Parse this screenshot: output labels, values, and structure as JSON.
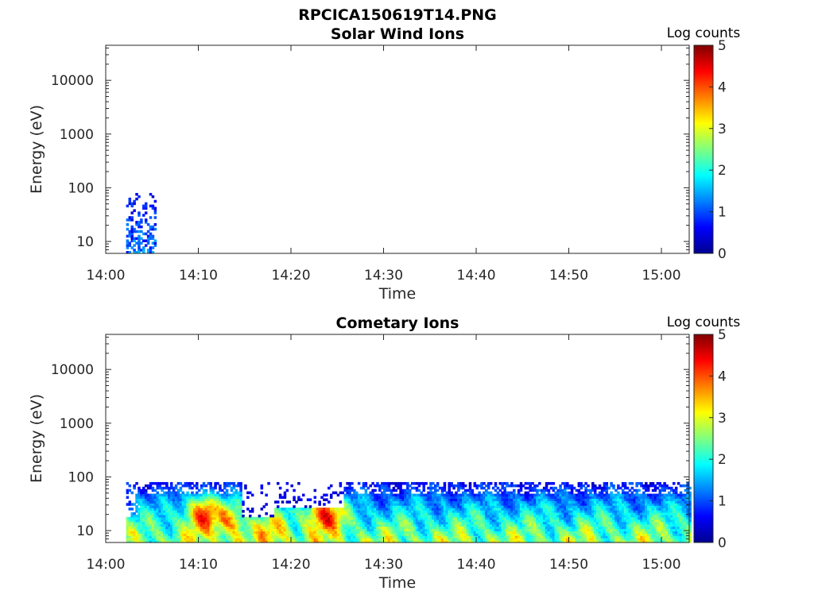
{
  "figure": {
    "title": "RPCICA150619T14.PNG"
  },
  "chart_data": [
    {
      "type": "heatmap",
      "title": "Solar Wind Ions",
      "xlabel": "Time",
      "ylabel": "Energy (eV)",
      "x_ticks": [
        "14:00",
        "14:10",
        "14:20",
        "14:30",
        "14:40",
        "14:50",
        "15:00"
      ],
      "x_range_minutes": [
        0,
        63
      ],
      "y_scale": "log",
      "y_ticks": [
        10,
        100,
        1000,
        10000
      ],
      "y_range": [
        6,
        45000
      ],
      "colorbar": {
        "label": "Log counts",
        "ticks": [
          0,
          1,
          2,
          3,
          4,
          5
        ],
        "range": [
          0,
          5
        ],
        "colormap": "jet"
      },
      "regions": [
        {
          "t_start_min": 2.2,
          "t_end_min": 5.3,
          "e_min": 6,
          "e_max": 80,
          "log_counts_peak": 1.7
        }
      ]
    },
    {
      "type": "heatmap",
      "title": "Cometary Ions",
      "xlabel": "Time",
      "ylabel": "Energy (eV)",
      "x_ticks": [
        "14:00",
        "14:10",
        "14:20",
        "14:30",
        "14:40",
        "14:50",
        "15:00"
      ],
      "x_range_minutes": [
        0,
        63
      ],
      "y_scale": "log",
      "y_ticks": [
        10,
        100,
        1000,
        10000
      ],
      "y_range": [
        6,
        45000
      ],
      "colorbar": {
        "label": "Log counts",
        "ticks": [
          0,
          1,
          2,
          3,
          4,
          5
        ],
        "range": [
          0,
          5
        ],
        "colormap": "jet"
      },
      "regions": [
        {
          "t_start_min": 2.2,
          "t_end_min": 63,
          "e_min": 6,
          "e_max": 80,
          "log_counts_peak": 4.2
        }
      ],
      "peaks": [
        {
          "t_min": 10.5,
          "e_center": 20,
          "log_counts": 4.0
        },
        {
          "t_min": 13.0,
          "e_center": 15,
          "log_counts": 3.6
        },
        {
          "t_min": 18.0,
          "e_center": 9,
          "log_counts": 3.3
        },
        {
          "t_min": 23.5,
          "e_center": 20,
          "log_counts": 4.2
        }
      ]
    }
  ]
}
